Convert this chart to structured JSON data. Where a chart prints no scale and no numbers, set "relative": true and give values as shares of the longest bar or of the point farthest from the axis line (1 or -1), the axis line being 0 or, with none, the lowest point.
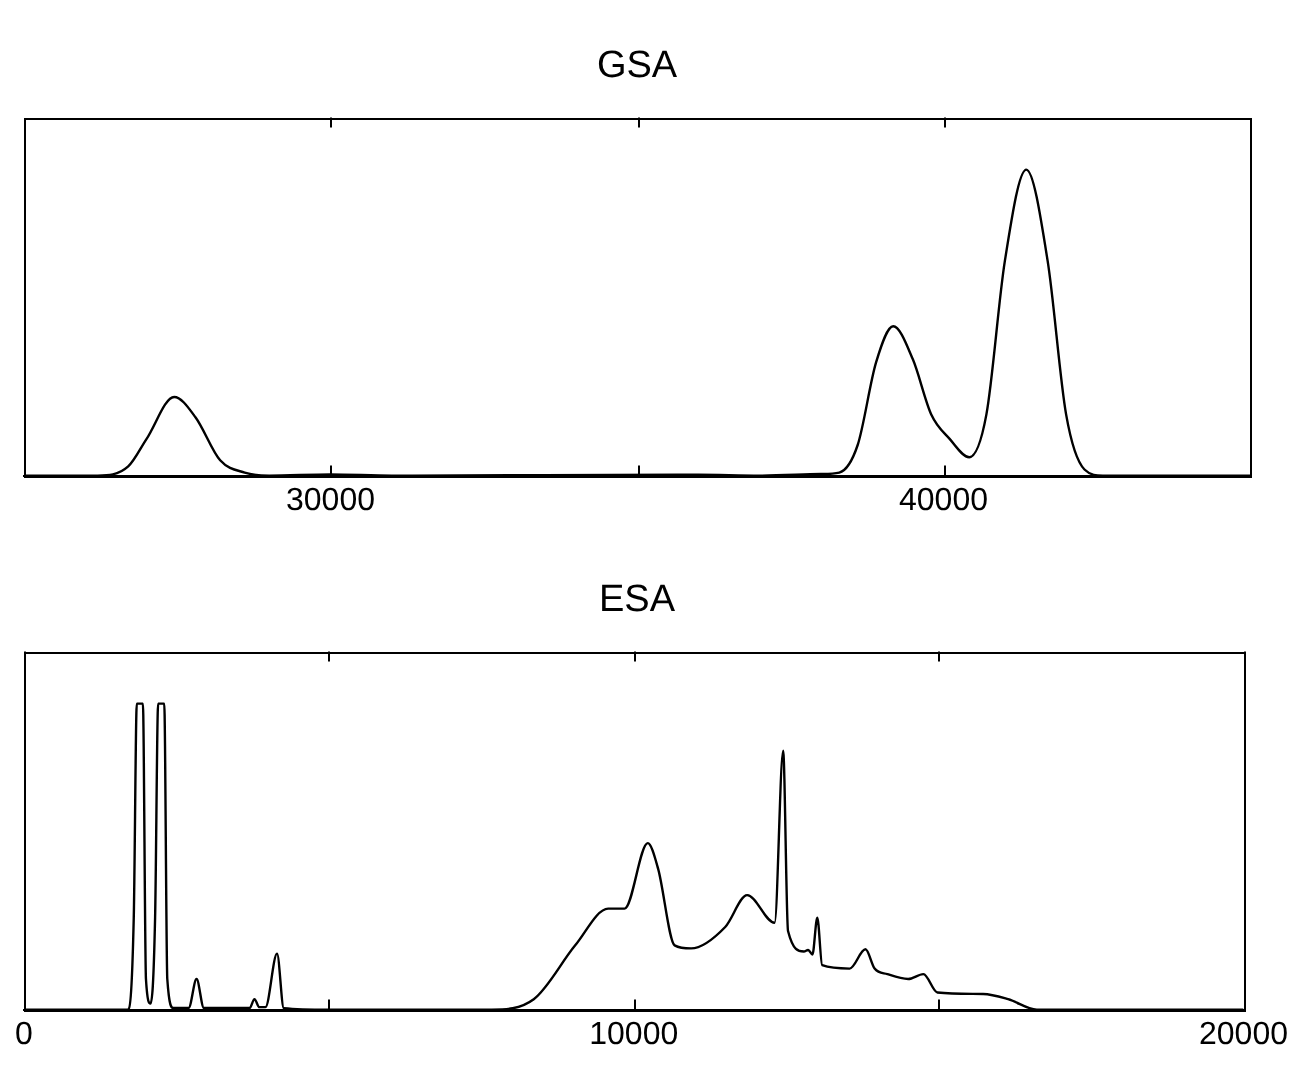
{
  "chart_data": [
    {
      "type": "line",
      "title": "GSA",
      "relative": true,
      "xlim": [
        25000,
        45000
      ],
      "xticks": [
        30000,
        {
          "value": 35000,
          "label": null
        },
        40000
      ],
      "grid": false,
      "legend": false,
      "marker": "none",
      "line_style": "solid",
      "series": [
        {
          "color": "#000000",
          "x": [
            25000,
            26200,
            26700,
            27000,
            27450,
            27800,
            28200,
            28600,
            29000,
            30000,
            31000,
            36000,
            37000,
            38000,
            38300,
            38600,
            38900,
            39180,
            39500,
            39800,
            40100,
            40420,
            40700,
            41000,
            41350,
            41700,
            42000,
            42300,
            42600,
            45000
          ],
          "values": [
            0,
            0,
            0.03,
            0.12,
            0.257,
            0.19,
            0.05,
            0.01,
            0,
            0.004,
            0,
            0.003,
            0,
            0.005,
            0.01,
            0.1,
            0.37,
            0.488,
            0.38,
            0.2,
            0.12,
            0.06,
            0.2,
            0.7,
            1,
            0.7,
            0.2,
            0.02,
            0,
            0
          ]
        }
      ]
    },
    {
      "type": "line",
      "title": "ESA",
      "relative": true,
      "xlim": [
        0,
        20000
      ],
      "xticks": [
        0,
        {
          "value": 5000,
          "label": null
        },
        10000,
        {
          "value": 15000,
          "label": null
        },
        20000
      ],
      "grid": false,
      "legend": false,
      "marker": "none",
      "line_style": "solid",
      "series": [
        {
          "color": "#000000",
          "x": [
            0,
            1700,
            1800,
            1850,
            1950,
            2000,
            2075,
            2150,
            2200,
            2300,
            2350,
            2450,
            2700,
            2830,
            2950,
            3700,
            3780,
            3860,
            3960,
            4150,
            4260,
            5000,
            7670,
            8360,
            9040,
            9580,
            9850,
            10230,
            10400,
            10670,
            10940,
            11500,
            11860,
            12310,
            12450,
            12530,
            12790,
            12860,
            12930,
            13010,
            13090,
            13540,
            13800,
            13950,
            14160,
            14500,
            14750,
            14980,
            15730,
            16140,
            16610,
            20000
          ],
          "values": [
            0,
            0,
            0.3,
            1,
            1,
            0.1,
            0.02,
            0.3,
            1,
            1,
            0.1,
            0.005,
            0.005,
            0.1,
            0.005,
            0.005,
            0.034,
            0.008,
            0.008,
            0.183,
            0.005,
            0,
            0,
            0.034,
            0.21,
            0.33,
            0.33,
            0.544,
            0.46,
            0.21,
            0.2,
            0.27,
            0.374,
            0.284,
            0.846,
            0.257,
            0.19,
            0.195,
            0.18,
            0.3,
            0.145,
            0.134,
            0.197,
            0.134,
            0.116,
            0.1,
            0.116,
            0.056,
            0.051,
            0.034,
            0,
            0
          ]
        }
      ]
    }
  ]
}
